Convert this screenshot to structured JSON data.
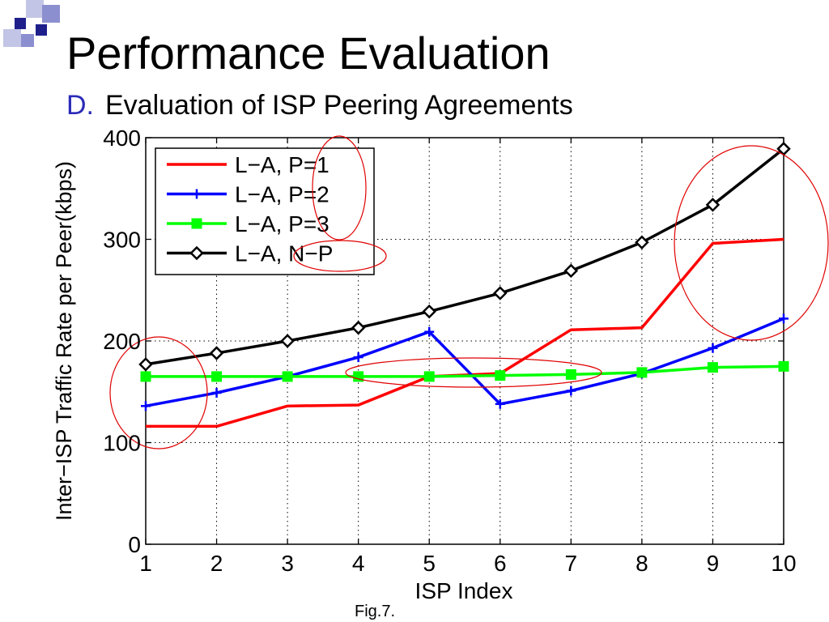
{
  "slide": {
    "title": "Performance Evaluation",
    "subtitle_marker": "D.",
    "subtitle": "Evaluation of ISP Peering Agreements",
    "caption": "Fig.7.",
    "accent_colors": [
      "#1f1f8c",
      "#8c8fcf",
      "#c3c5e6"
    ]
  },
  "chart_data": {
    "type": "line",
    "title": "",
    "xlabel": "ISP Index",
    "ylabel": "Inter−ISP Traffic Rate per Peer(kbps)",
    "x": [
      1,
      2,
      3,
      4,
      5,
      6,
      7,
      8,
      9,
      10
    ],
    "xlim": [
      1,
      10
    ],
    "ylim": [
      0,
      400
    ],
    "xticks": [
      "1",
      "2",
      "3",
      "4",
      "5",
      "6",
      "7",
      "8",
      "9",
      "10"
    ],
    "yticks": [
      "0",
      "100",
      "200",
      "300",
      "400"
    ],
    "grid": true,
    "legend_position": "top-left",
    "series": [
      {
        "name": "L−A, P=1",
        "color": "#ff0000",
        "marker": "none",
        "values": [
          116,
          116,
          136,
          137,
          165,
          168,
          211,
          213,
          296,
          300
        ]
      },
      {
        "name": "L−A, P=2",
        "color": "#0000ff",
        "marker": "plus",
        "values": [
          136,
          149,
          165,
          184,
          209,
          138,
          151,
          168,
          193,
          222
        ]
      },
      {
        "name": "L−A, P=3",
        "color": "#00ff00",
        "marker": "square",
        "values": [
          165,
          165,
          165,
          165,
          165,
          166,
          167,
          169,
          174,
          175
        ]
      },
      {
        "name": "L−A, N−P",
        "color": "#000000",
        "marker": "diamond",
        "values": [
          177,
          188,
          200,
          213,
          229,
          247,
          269,
          297,
          334,
          389
        ]
      }
    ],
    "annotations": [
      {
        "shape": "ellipse",
        "color": "#e00000",
        "around": "series values at ISP 1"
      },
      {
        "shape": "ellipse",
        "color": "#e00000",
        "around": "L−A, P=3 values at ISP 4–7"
      },
      {
        "shape": "ellipse",
        "color": "#e00000",
        "around": "series values at ISP 9–10"
      },
      {
        "shape": "ellipse",
        "color": "#e00000",
        "around": "legend entries P=1 and P=2"
      },
      {
        "shape": "ellipse",
        "color": "#e00000",
        "around": "legend entry N−P"
      }
    ]
  }
}
